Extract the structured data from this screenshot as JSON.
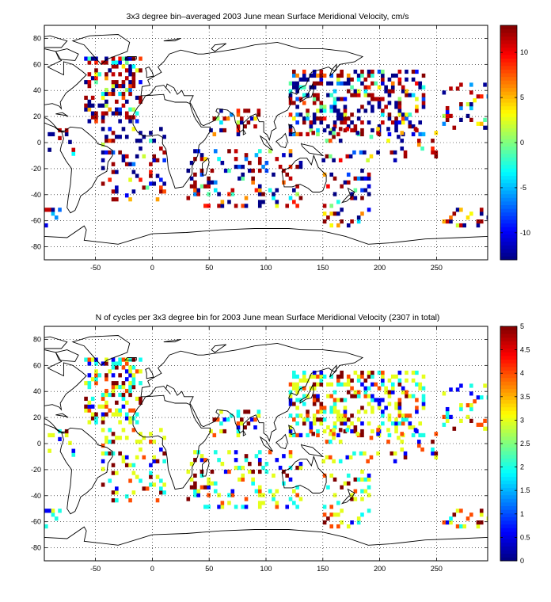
{
  "figure": {
    "background": "#ffffff",
    "grid": "dotted",
    "land_outline_color": "#000000"
  },
  "chart_data": [
    {
      "type": "heatmap",
      "title": "3x3 degree bin–averaged 2003 June mean Surface Meridional Velocity, cm/s",
      "xlabel": "",
      "ylabel": "",
      "xlim": [
        -95,
        295
      ],
      "ylim": [
        -90,
        90
      ],
      "x_ticks": [
        -50,
        0,
        50,
        100,
        150,
        200,
        250
      ],
      "y_ticks": [
        -80,
        -60,
        -40,
        -20,
        0,
        20,
        40,
        60,
        80
      ],
      "colorbar": {
        "range": [
          -13,
          13
        ],
        "ticks": [
          -10,
          -5,
          0,
          5,
          10
        ],
        "colormap": "jet",
        "placement": "right"
      },
      "grid": true
    },
    {
      "type": "heatmap",
      "title": "N of cycles per 3x3 degree bin for 2003 June mean Surface Meridional Velocity (2307 in total)",
      "xlabel": "",
      "ylabel": "",
      "xlim": [
        -95,
        295
      ],
      "ylim": [
        -90,
        90
      ],
      "x_ticks": [
        -50,
        0,
        50,
        100,
        150,
        200,
        250
      ],
      "y_ticks": [
        -80,
        -60,
        -40,
        -20,
        0,
        20,
        40,
        60,
        80
      ],
      "colorbar": {
        "range": [
          0,
          5
        ],
        "ticks": [
          0,
          0.5,
          1,
          1.5,
          2,
          2.5,
          3,
          3.5,
          4,
          4.5,
          5
        ],
        "colormap": "jet",
        "placement": "right"
      },
      "grid": true
    }
  ]
}
